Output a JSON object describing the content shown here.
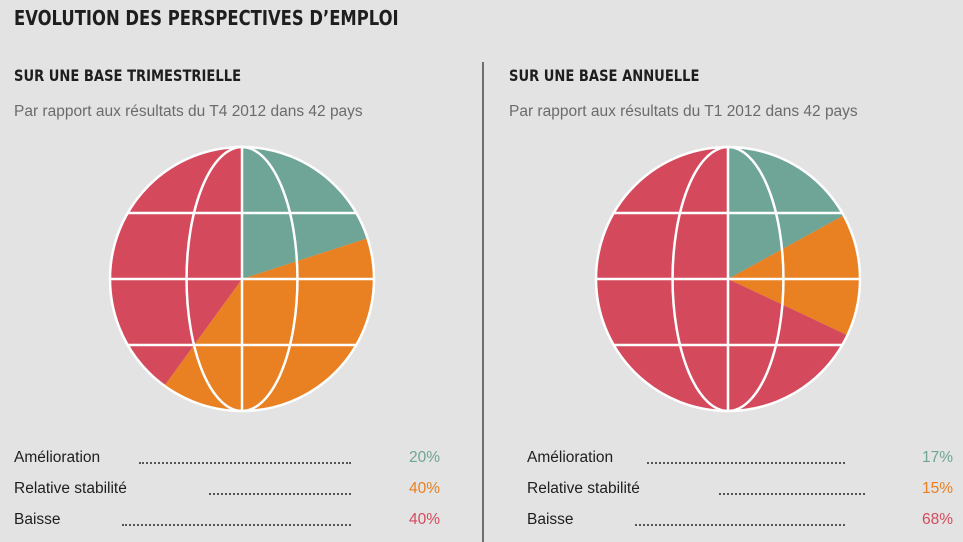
{
  "title": "EVOLUTION DES PERSPECTIVES D’EMPLOI",
  "colors": {
    "amelioration": "#6ea596",
    "stabilite": "#e98021",
    "baisse": "#d44a5c",
    "grid": "#ffffff",
    "background": "#e3e3e3"
  },
  "chart_data": [
    {
      "type": "pie",
      "title": "SUR UNE BASE TRIMESTRIELLE",
      "subtitle": "Par rapport aux résultats du T4 2012 dans 42 pays",
      "categories": [
        "Amélioration",
        "Relative stabilité",
        "Baisse"
      ],
      "values": [
        20,
        40,
        40
      ],
      "labels": [
        "20%",
        "40%",
        "40%"
      ]
    },
    {
      "type": "pie",
      "title": "SUR UNE BASE ANNUELLE",
      "subtitle": "Par rapport aux résultats du T1 2012 dans 42 pays",
      "categories": [
        "Amélioration",
        "Relative stabilité",
        "Baisse"
      ],
      "values": [
        17,
        15,
        68
      ],
      "labels": [
        "17%",
        "15%",
        "68%"
      ]
    }
  ]
}
